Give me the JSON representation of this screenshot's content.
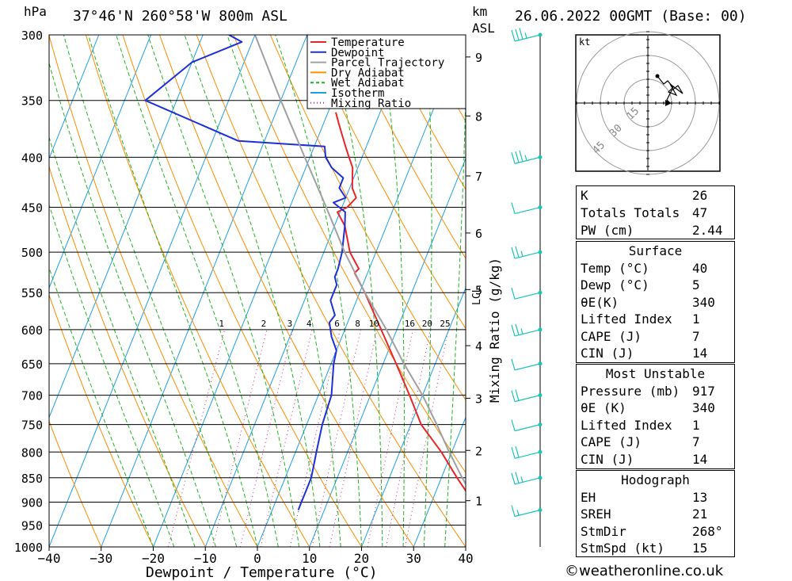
{
  "header": {
    "pressure_unit": "hPa",
    "location": "37°46'N  260°58'W  800m  ASL",
    "km_label": "km",
    "asl_label": "ASL",
    "datetime": "26.06.2022  00GMT  (Base: 00)"
  },
  "colors": {
    "temperature": "#e8262a",
    "dewpoint": "#1d2fd8",
    "parcel": "#a0a0a0",
    "dry_adiabat": "#ff8c00",
    "wet_adiabat": "#1fb41f",
    "isotherm": "#1ea0e8",
    "mixing_ratio": "#d0208c",
    "wind": "#19c5b3"
  },
  "chart_data": {
    "type": "line",
    "subtype": "skew-T log-P",
    "xlabel": "Dewpoint / Temperature (°C)",
    "ylabel_left": "hPa",
    "ylabel_right": "km ASL",
    "mixing_ratio_label": "Mixing Ratio (g/kg)",
    "xlim": [
      -40,
      40
    ],
    "ylim": [
      1000,
      300
    ],
    "pressure_levels": [
      300,
      350,
      400,
      450,
      500,
      550,
      600,
      650,
      700,
      750,
      800,
      850,
      900,
      950,
      1000
    ],
    "temperature_ticks": [
      -40,
      -30,
      -20,
      -10,
      0,
      10,
      20,
      30,
      40
    ],
    "km_ticks": [
      1,
      2,
      3,
      4,
      5,
      6,
      7,
      8,
      9
    ],
    "lcl_label": "LCL",
    "mixing_ratio_values": [
      "1",
      "2",
      "3",
      "4",
      "6",
      "8",
      "10",
      "16",
      "20",
      "25"
    ],
    "legend": [
      "Temperature",
      "Dewpoint",
      "Parcel Trajectory",
      "Dry Adiabat",
      "Wet Adiabat",
      "Isotherm",
      "Mixing Ratio"
    ],
    "series": [
      {
        "name": "Temperature",
        "points": [
          [
            917,
            40
          ],
          [
            900,
            38
          ],
          [
            850,
            33
          ],
          [
            800,
            28
          ],
          [
            750,
            22
          ],
          [
            700,
            17.5
          ],
          [
            650,
            12.5
          ],
          [
            600,
            7
          ],
          [
            550,
            1
          ],
          [
            525,
            -2.5
          ],
          [
            520,
            -2
          ],
          [
            500,
            -5
          ],
          [
            470,
            -8
          ],
          [
            455,
            -10.5
          ],
          [
            450,
            -9
          ],
          [
            440,
            -8
          ],
          [
            430,
            -9.5
          ],
          [
            410,
            -11
          ],
          [
            400,
            -12.5
          ],
          [
            390,
            -14
          ],
          [
            370,
            -17
          ],
          [
            360,
            -18.5
          ]
        ]
      },
      {
        "name": "Dewpoint",
        "points": [
          [
            917,
            5
          ],
          [
            900,
            5
          ],
          [
            850,
            5
          ],
          [
            800,
            4
          ],
          [
            750,
            3
          ],
          [
            700,
            2.5
          ],
          [
            650,
            0.5
          ],
          [
            630,
            0
          ],
          [
            610,
            -2
          ],
          [
            590,
            -3.5
          ],
          [
            580,
            -3
          ],
          [
            560,
            -5
          ],
          [
            540,
            -5
          ],
          [
            530,
            -6
          ],
          [
            520,
            -6
          ],
          [
            500,
            -6.5
          ],
          [
            470,
            -8
          ],
          [
            455,
            -9
          ],
          [
            445,
            -12
          ],
          [
            440,
            -10
          ],
          [
            430,
            -12
          ],
          [
            420,
            -12
          ],
          [
            410,
            -15
          ],
          [
            400,
            -17
          ],
          [
            390,
            -18
          ],
          [
            385,
            -35
          ],
          [
            350,
            -56
          ],
          [
            320,
            -50
          ],
          [
            305,
            -42
          ],
          [
            300,
            -45
          ]
        ]
      },
      {
        "name": "Parcel Trajectory",
        "points": [
          [
            917,
            40
          ],
          [
            850,
            34
          ],
          [
            800,
            29.5
          ],
          [
            750,
            25
          ],
          [
            700,
            20
          ],
          [
            650,
            14
          ],
          [
            600,
            8
          ],
          [
            550,
            1
          ],
          [
            500,
            -6
          ],
          [
            450,
            -13
          ],
          [
            400,
            -21
          ],
          [
            350,
            -30
          ],
          [
            300,
            -40
          ]
        ]
      }
    ],
    "wind_barbs": [
      {
        "p": 917,
        "speed_kt": 15
      },
      {
        "p": 850,
        "speed_kt": 25
      },
      {
        "p": 800,
        "speed_kt": 20
      },
      {
        "p": 750,
        "speed_kt": 10
      },
      {
        "p": 700,
        "speed_kt": 20
      },
      {
        "p": 650,
        "speed_kt": 10
      },
      {
        "p": 600,
        "speed_kt": 25
      },
      {
        "p": 550,
        "speed_kt": 10
      },
      {
        "p": 500,
        "speed_kt": 25
      },
      {
        "p": 450,
        "speed_kt": 10
      },
      {
        "p": 400,
        "speed_kt": 35
      },
      {
        "p": 300,
        "speed_kt": 35
      }
    ]
  },
  "hodograph": {
    "unit": "kt",
    "rings": [
      "15",
      "30",
      "45"
    ]
  },
  "indices": {
    "basic": [
      {
        "label": "K",
        "value": "26"
      },
      {
        "label": "Totals Totals",
        "value": "47"
      },
      {
        "label": "PW (cm)",
        "value": "2.44"
      }
    ],
    "surface": {
      "title": "Surface",
      "rows": [
        {
          "label": "Temp (°C)",
          "value": "40"
        },
        {
          "label": "Dewp (°C)",
          "value": "5"
        },
        {
          "label": "θE(K)",
          "value": "340"
        },
        {
          "label": "Lifted Index",
          "value": "1"
        },
        {
          "label": "CAPE (J)",
          "value": "7"
        },
        {
          "label": "CIN (J)",
          "value": "14"
        }
      ]
    },
    "most_unstable": {
      "title": "Most Unstable",
      "rows": [
        {
          "label": "Pressure (mb)",
          "value": "917"
        },
        {
          "label": "θE (K)",
          "value": "340"
        },
        {
          "label": "Lifted Index",
          "value": "1"
        },
        {
          "label": "CAPE (J)",
          "value": "7"
        },
        {
          "label": "CIN (J)",
          "value": "14"
        }
      ]
    },
    "hodograph": {
      "title": "Hodograph",
      "rows": [
        {
          "label": "EH",
          "value": "13"
        },
        {
          "label": "SREH",
          "value": "21"
        },
        {
          "label": "StmDir",
          "value": "268°"
        },
        {
          "label": "StmSpd (kt)",
          "value": "15"
        }
      ]
    }
  },
  "credit": "©weatheronline.co.uk"
}
